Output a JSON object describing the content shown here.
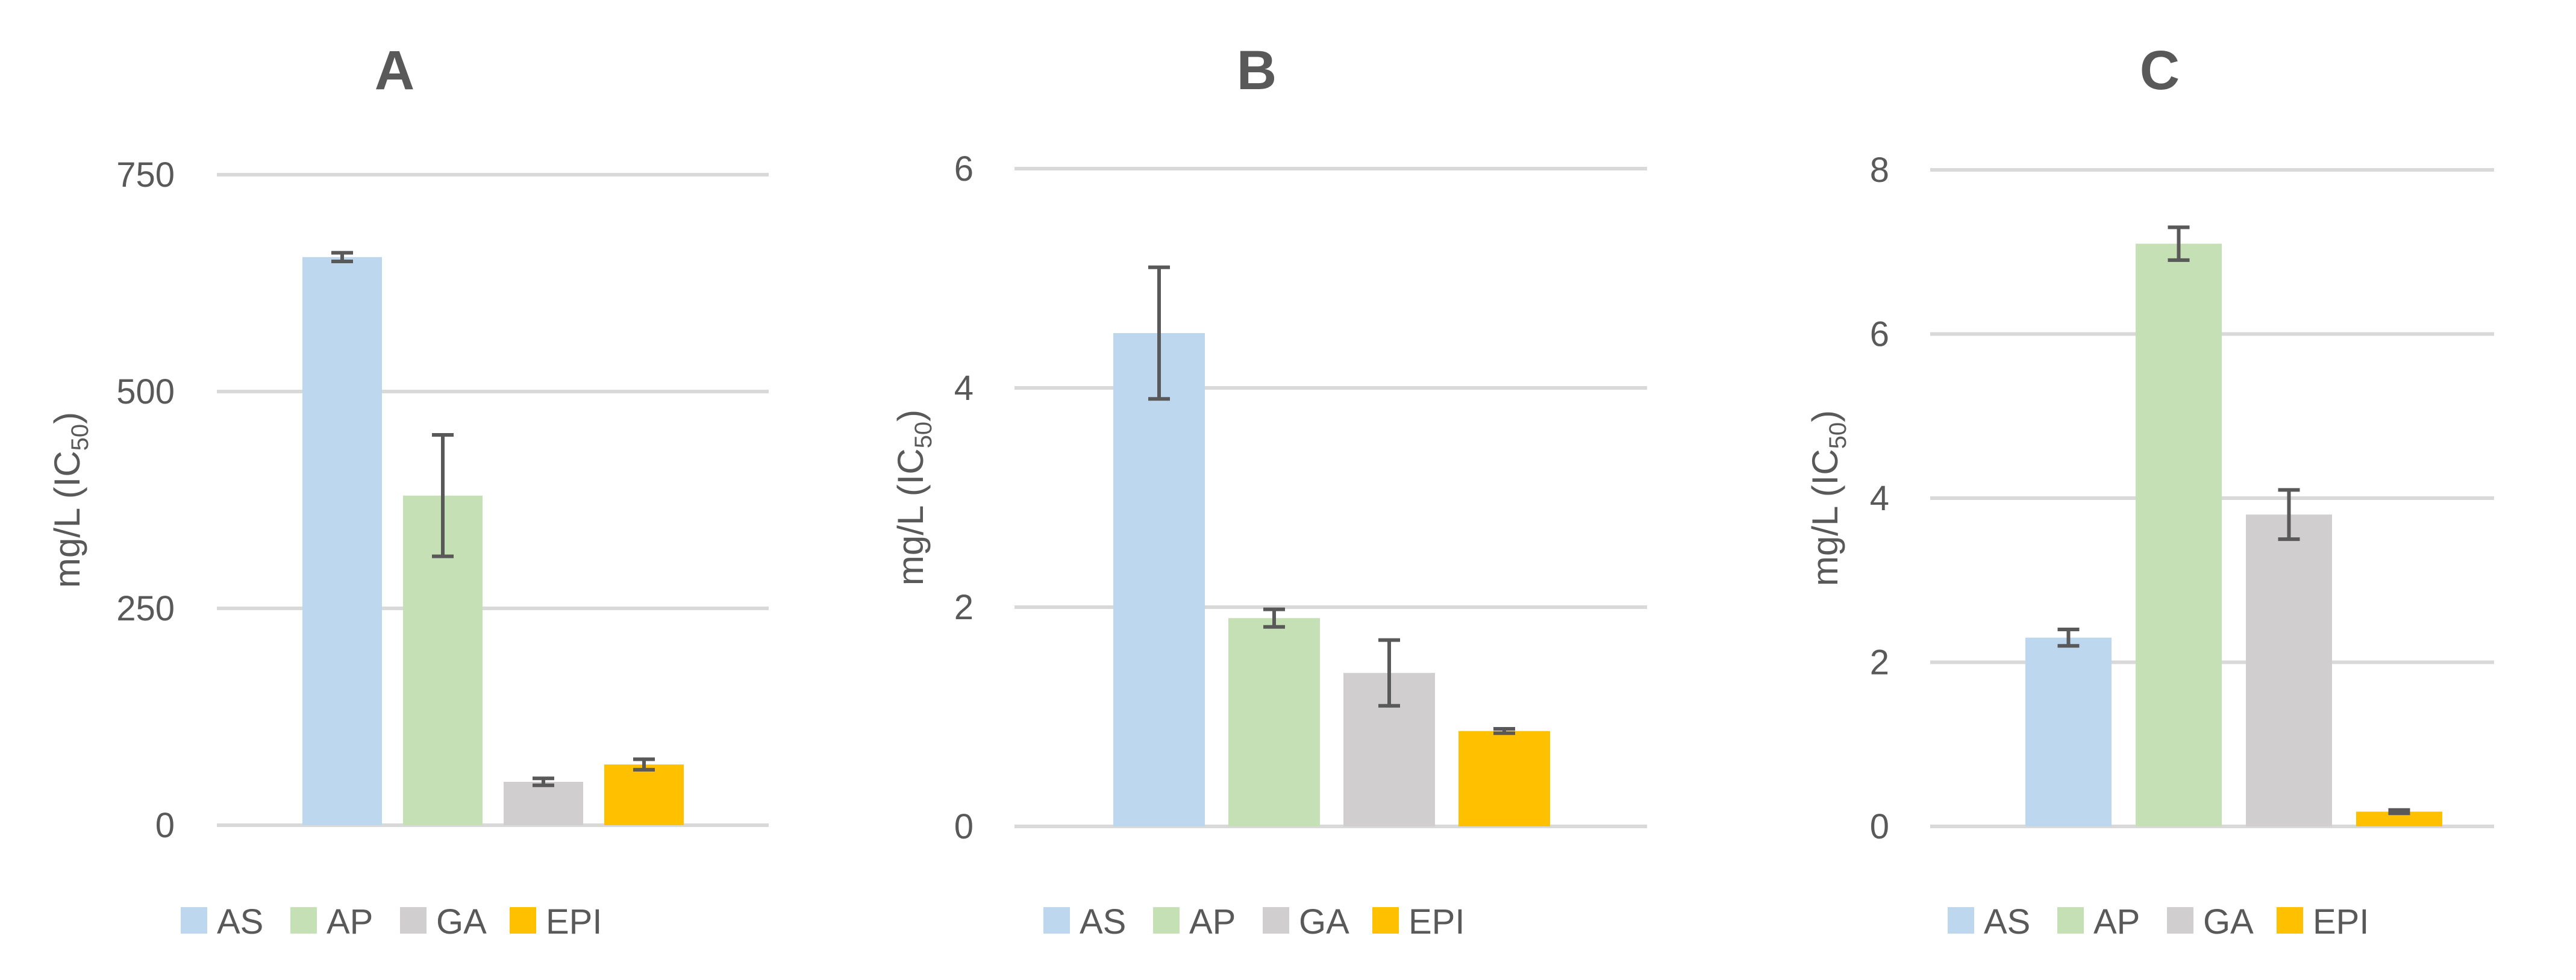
{
  "colors": {
    "AS": "#BDD7EE",
    "AP": "#C5E0B4",
    "GA": "#D0CECE",
    "EPI": "#FFC000",
    "gridline": "#D9D9D9",
    "text": "#595959",
    "errorbar": "#595959"
  },
  "chart_data": [
    {
      "type": "bar",
      "title": "A",
      "ylabel": "mg/L (IC",
      "ylabel_sub": "50",
      "ylabel_close": ")",
      "categories": [
        "AS",
        "AP",
        "GA",
        "EPI"
      ],
      "values": [
        655,
        380,
        50,
        70
      ],
      "errors": [
        5,
        70,
        4,
        6
      ],
      "ylim": [
        0,
        750
      ],
      "yticks": [
        0,
        250,
        500,
        750
      ],
      "legend": [
        "AS",
        "AP",
        "GA",
        "EPI"
      ],
      "legend_position": "bottom"
    },
    {
      "type": "bar",
      "title": "B",
      "ylabel": "mg/L (IC",
      "ylabel_sub": "50",
      "ylabel_close": ")",
      "categories": [
        "AS",
        "AP",
        "GA",
        "EPI"
      ],
      "values": [
        4.5,
        1.9,
        1.4,
        0.87
      ],
      "errors": [
        0.6,
        0.08,
        0.3,
        0.02
      ],
      "ylim": [
        0,
        6
      ],
      "yticks": [
        0,
        2,
        4,
        6
      ],
      "legend": [
        "AS",
        "AP",
        "GA",
        "EPI"
      ],
      "legend_position": "bottom"
    },
    {
      "type": "bar",
      "title": "C",
      "ylabel": "mg/L (IC",
      "ylabel_sub": "50",
      "ylabel_close": ")",
      "categories": [
        "AS",
        "AP",
        "GA",
        "EPI"
      ],
      "values": [
        2.3,
        7.1,
        3.8,
        0.18
      ],
      "errors": [
        0.1,
        0.2,
        0.3,
        0.02
      ],
      "ylim": [
        0,
        8
      ],
      "yticks": [
        0,
        2,
        4,
        6,
        8
      ],
      "legend": [
        "AS",
        "AP",
        "GA",
        "EPI"
      ],
      "legend_position": "bottom"
    }
  ]
}
